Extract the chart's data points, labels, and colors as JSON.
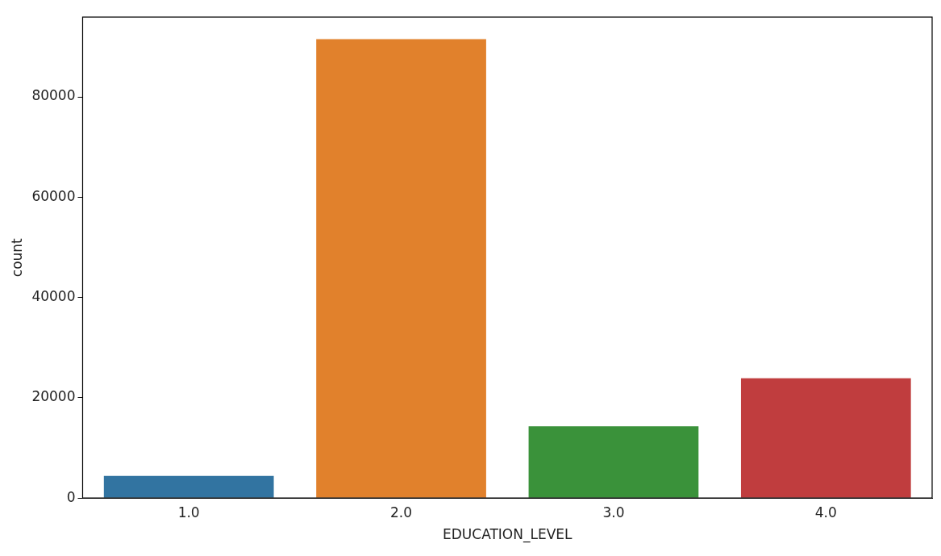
{
  "chart_data": {
    "type": "bar",
    "xlabel": "EDUCATION_LEVEL",
    "ylabel": "count",
    "categories": [
      "1.0",
      "2.0",
      "3.0",
      "4.0"
    ],
    "values": [
      4400,
      91500,
      14300,
      23900
    ],
    "colors": [
      "#3274a1",
      "#e1812c",
      "#3a923a",
      "#c03d3e"
    ],
    "ylim": [
      0,
      95900
    ],
    "yticks": [
      0,
      20000,
      40000,
      60000,
      80000
    ],
    "grid": false,
    "legend": false
  }
}
